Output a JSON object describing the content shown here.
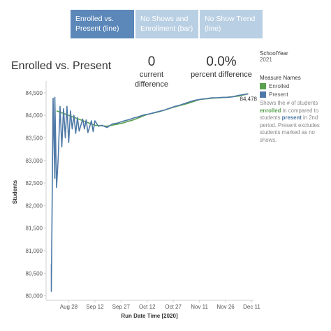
{
  "tabs": [
    {
      "line1": "Enrolled vs.",
      "line2": "Present (line)",
      "active": true
    },
    {
      "line1": "No Shows and",
      "line2": "Enrollment (bar)",
      "active": false
    },
    {
      "line1": "No Show Trend",
      "line2": "(line)",
      "active": false
    }
  ],
  "title": "Enrolled vs. Present",
  "kpis": {
    "difference_value": "0",
    "difference_label": "current difference",
    "percent_value": "0.0%",
    "percent_label": "percent difference"
  },
  "filter": {
    "label": "SchoolYear",
    "value": "2021"
  },
  "legend": {
    "title": "Measure Names",
    "items": [
      {
        "name": "Enrolled",
        "color": "#59a14f"
      },
      {
        "name": "Present",
        "color": "#4e79a7"
      }
    ]
  },
  "note": {
    "p1": "Shows the # of students ",
    "enrolled_word": "enrolled",
    "p2": " in compared to students ",
    "present_word": "present",
    "p3": " in 2nd period. Present excludes students marked as no shows."
  },
  "chart_data": {
    "type": "line",
    "xlabel": "Run Date Time [2020]",
    "ylabel": "Students",
    "ylim": [
      79900,
      84700
    ],
    "yticks": [
      80000,
      80500,
      81000,
      81500,
      82000,
      82500,
      83000,
      83500,
      84000,
      84500
    ],
    "ytick_labels": [
      "80,000",
      "80,500",
      "81,000",
      "81,500",
      "82,000",
      "82,500",
      "83,000",
      "83,500",
      "84,000",
      "84,500"
    ],
    "xlim": [
      "2020-08-15",
      "2020-12-12"
    ],
    "xticks": [
      "2020-08-28",
      "2020-09-12",
      "2020-09-27",
      "2020-10-12",
      "2020-10-27",
      "2020-11-11",
      "2020-11-26",
      "2020-12-11"
    ],
    "xtick_labels": [
      "Aug 28",
      "Sep 12",
      "Sep 27",
      "Oct 12",
      "Oct 27",
      "Nov 11",
      "Nov 26",
      "Dec 11"
    ],
    "end_label": "84,478",
    "grid": false,
    "series": [
      {
        "name": "Enrolled",
        "color": "#59a14f",
        "points": [
          [
            "2020-08-21",
            84100
          ],
          [
            "2020-08-28",
            84000
          ],
          [
            "2020-09-04",
            83900
          ],
          [
            "2020-09-12",
            83780
          ],
          [
            "2020-09-19",
            83760
          ],
          [
            "2020-09-27",
            83820
          ],
          [
            "2020-10-04",
            83900
          ],
          [
            "2020-10-12",
            84020
          ],
          [
            "2020-10-19",
            84080
          ],
          [
            "2020-10-27",
            84180
          ],
          [
            "2020-11-04",
            84260
          ],
          [
            "2020-11-11",
            84350
          ],
          [
            "2020-11-18",
            84380
          ],
          [
            "2020-11-26",
            84400
          ],
          [
            "2020-12-04",
            84430
          ],
          [
            "2020-12-09",
            84478
          ]
        ]
      },
      {
        "name": "Present",
        "color": "#4e79a7",
        "points": [
          [
            "2020-08-18",
            80700
          ],
          [
            "2020-08-18",
            80100
          ],
          [
            "2020-08-19",
            84300
          ],
          [
            "2020-08-19",
            84380
          ],
          [
            "2020-08-20",
            82600
          ],
          [
            "2020-08-20",
            84400
          ],
          [
            "2020-08-21",
            82400
          ],
          [
            "2020-08-22",
            83100
          ],
          [
            "2020-08-23",
            84200
          ],
          [
            "2020-08-24",
            83300
          ],
          [
            "2020-08-25",
            84150
          ],
          [
            "2020-08-26",
            83500
          ],
          [
            "2020-08-27",
            84200
          ],
          [
            "2020-08-28",
            83400
          ],
          [
            "2020-08-29",
            84100
          ],
          [
            "2020-08-30",
            83700
          ],
          [
            "2020-08-31",
            84000
          ],
          [
            "2020-09-01",
            83600
          ],
          [
            "2020-09-02",
            83950
          ],
          [
            "2020-09-03",
            83650
          ],
          [
            "2020-09-05",
            83920
          ],
          [
            "2020-09-06",
            83700
          ],
          [
            "2020-09-07",
            83900
          ],
          [
            "2020-09-08",
            83620
          ],
          [
            "2020-09-10",
            83880
          ],
          [
            "2020-09-11",
            83640
          ],
          [
            "2020-09-12",
            83880
          ],
          [
            "2020-09-14",
            83760
          ],
          [
            "2020-09-16",
            83780
          ],
          [
            "2020-09-19",
            83730
          ],
          [
            "2020-09-22",
            83810
          ],
          [
            "2020-09-25",
            83830
          ],
          [
            "2020-09-28",
            83870
          ],
          [
            "2020-10-01",
            83900
          ],
          [
            "2020-10-04",
            83940
          ],
          [
            "2020-10-07",
            83970
          ],
          [
            "2020-10-10",
            84010
          ],
          [
            "2020-10-13",
            84030
          ],
          [
            "2020-10-16",
            84060
          ],
          [
            "2020-10-19",
            84090
          ],
          [
            "2020-10-22",
            84120
          ],
          [
            "2020-10-25",
            84160
          ],
          [
            "2020-10-28",
            84200
          ],
          [
            "2020-10-31",
            84230
          ],
          [
            "2020-11-03",
            84270
          ],
          [
            "2020-11-06",
            84310
          ],
          [
            "2020-11-09",
            84340
          ],
          [
            "2020-11-12",
            84360
          ],
          [
            "2020-11-15",
            84370
          ],
          [
            "2020-11-18",
            84390
          ],
          [
            "2020-11-21",
            84390
          ],
          [
            "2020-11-24",
            84400
          ],
          [
            "2020-11-27",
            84400
          ],
          [
            "2020-11-30",
            84410
          ],
          [
            "2020-12-03",
            84440
          ],
          [
            "2020-12-06",
            84460
          ],
          [
            "2020-12-09",
            84478
          ]
        ]
      }
    ]
  }
}
